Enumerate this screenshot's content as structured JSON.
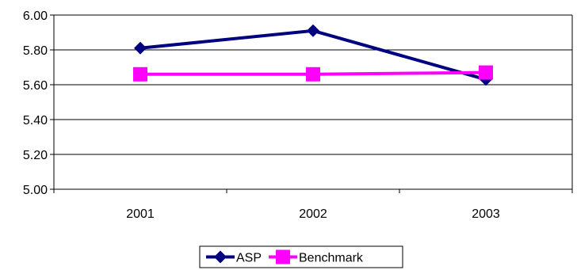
{
  "chart_data": {
    "type": "line",
    "title": "",
    "xlabel": "",
    "ylabel": "",
    "categories": [
      "2001",
      "2002",
      "2003"
    ],
    "ylim": [
      5.0,
      6.0
    ],
    "yticks": [
      "5.00",
      "5.20",
      "5.40",
      "5.60",
      "5.80",
      "6.00"
    ],
    "grid": "horizontal",
    "legend": "bottom-center",
    "series": [
      {
        "name": "ASP",
        "values": [
          5.81,
          5.91,
          5.63
        ],
        "color": "#000080",
        "marker": "diamond"
      },
      {
        "name": "Benchmark",
        "values": [
          5.66,
          5.66,
          5.67
        ],
        "color": "#ff00ff",
        "marker": "square"
      }
    ]
  }
}
